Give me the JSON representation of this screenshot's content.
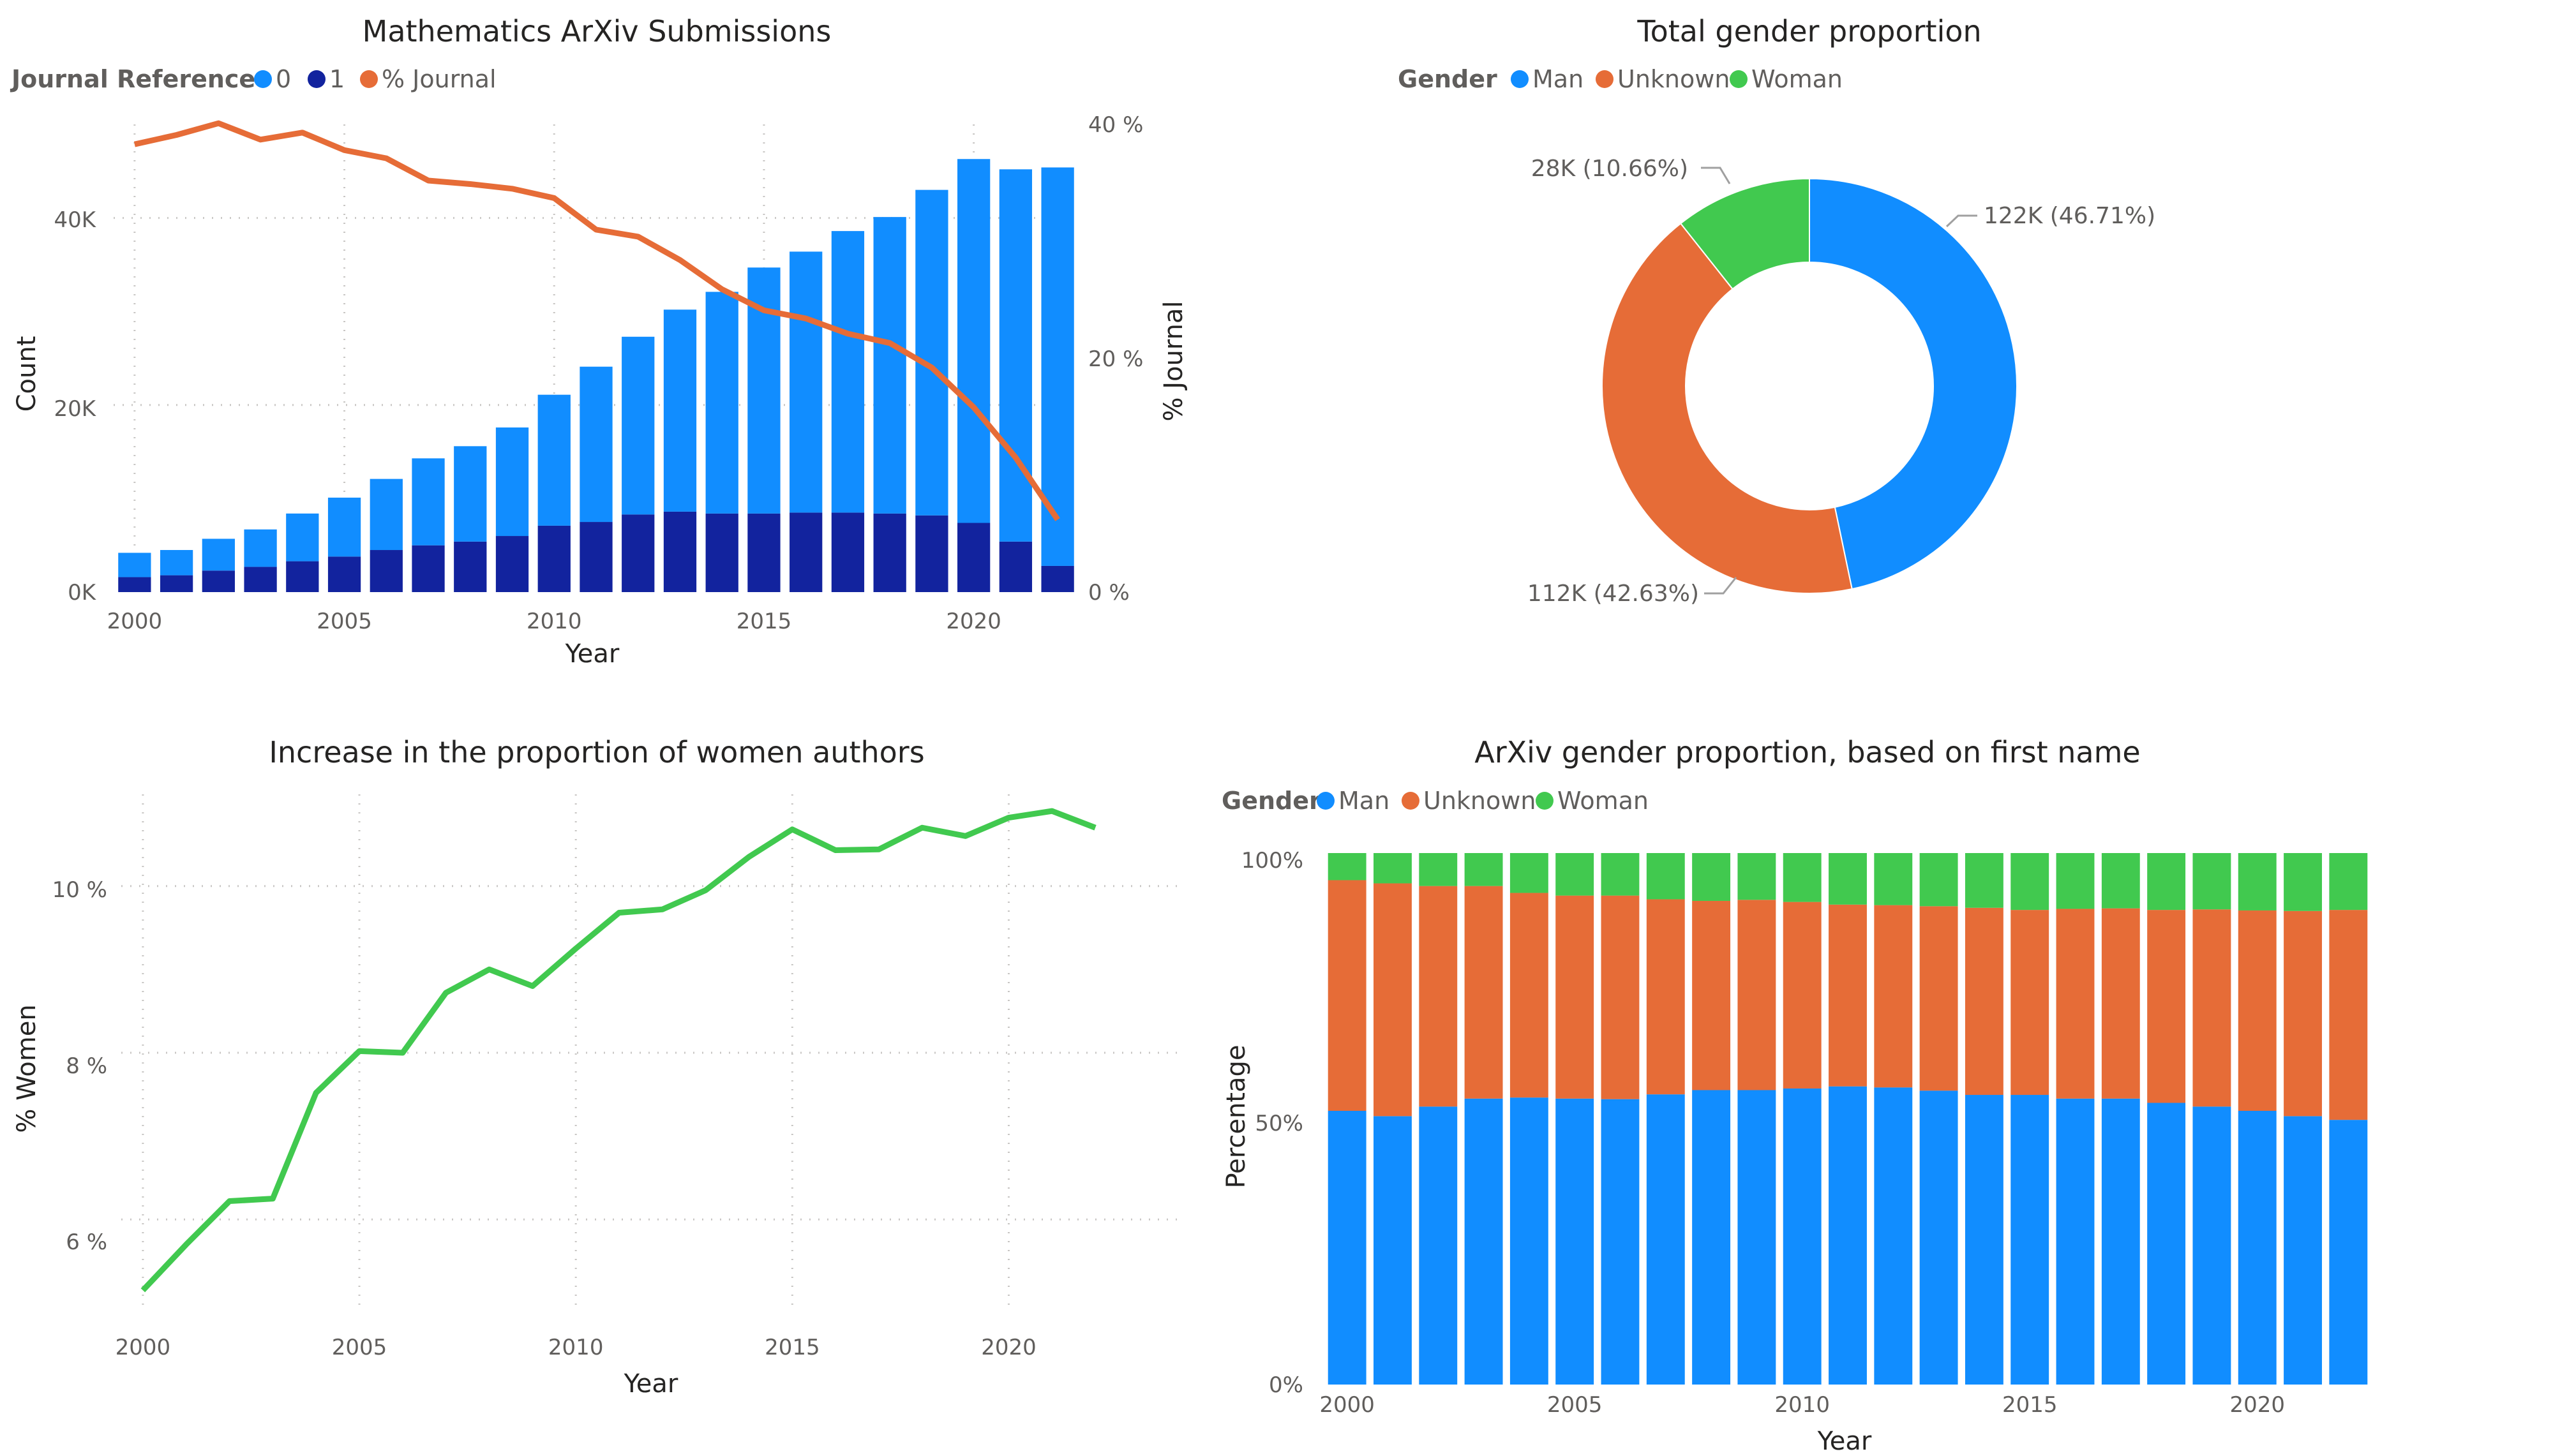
{
  "chart_data": [
    {
      "id": "submissions",
      "type": "bar",
      "title": "Mathematics ArXiv Submissions",
      "legend_title": "Journal Reference",
      "xlabel": "Year",
      "ylabel": "Count",
      "y2label": "% Journal",
      "ylim": [
        0,
        50000
      ],
      "y2lim": [
        0,
        40
      ],
      "y_ticks": [
        "0K",
        "20K",
        "40K"
      ],
      "y2_ticks": [
        "0 %",
        "20 %",
        "40 %"
      ],
      "x_ticks": [
        "2000",
        "2005",
        "2010",
        "2015",
        "2020"
      ],
      "legend_position": "top-left",
      "grid": true,
      "stacked": true,
      "categories": [
        2000,
        2001,
        2002,
        2003,
        2004,
        2005,
        2006,
        2007,
        2008,
        2009,
        2010,
        2011,
        2012,
        2013,
        2014,
        2015,
        2016,
        2017,
        2018,
        2019,
        2020,
        2021,
        2022
      ],
      "series": [
        {
          "name": "1",
          "color": "#12239E",
          "values": [
            1600,
            1800,
            2300,
            2700,
            3300,
            3800,
            4500,
            5000,
            5400,
            6000,
            7100,
            7500,
            8300,
            8600,
            8400,
            8400,
            8500,
            8500,
            8400,
            8200,
            7400,
            5400,
            2800
          ]
        },
        {
          "name": "0",
          "color": "#118DFF",
          "values": [
            2600,
            2700,
            3400,
            4000,
            5100,
            6300,
            7600,
            9300,
            10200,
            11600,
            14000,
            16600,
            19000,
            21600,
            23700,
            26300,
            27900,
            30100,
            31700,
            34800,
            38900,
            39800,
            42600
          ]
        },
        {
          "name": "% Journal",
          "color": "#E66C37",
          "axis": "secondary",
          "values": [
            38.3,
            39.1,
            40.1,
            38.7,
            39.3,
            37.8,
            37.1,
            35.2,
            34.9,
            34.5,
            33.7,
            31.0,
            30.4,
            28.4,
            25.9,
            24.1,
            23.4,
            22.1,
            21.3,
            19.2,
            15.8,
            11.5,
            6.2
          ]
        }
      ]
    },
    {
      "id": "women",
      "type": "line",
      "title": "Increase in the proportion of women authors",
      "xlabel": "Year",
      "ylabel": "% Women",
      "ylim": [
        4.9,
        11.1
      ],
      "y_ticks": [
        "6 %",
        "8 %",
        "10 %"
      ],
      "x_ticks": [
        "2000",
        "2005",
        "2010",
        "2015",
        "2020"
      ],
      "grid": true,
      "x": [
        2000,
        2001,
        2002,
        2003,
        2004,
        2005,
        2006,
        2007,
        2008,
        2009,
        2010,
        2011,
        2012,
        2013,
        2014,
        2015,
        2016,
        2017,
        2018,
        2019,
        2020,
        2021,
        2022
      ],
      "series": [
        {
          "color": "#41C94F",
          "values": [
            5.15,
            5.7,
            6.22,
            6.25,
            7.52,
            8.02,
            8.0,
            8.72,
            9.0,
            8.8,
            9.25,
            9.68,
            9.72,
            9.95,
            10.35,
            10.68,
            10.43,
            10.44,
            10.7,
            10.6,
            10.82,
            10.9,
            10.7
          ]
        }
      ]
    },
    {
      "id": "total_gender",
      "type": "pie",
      "donut": true,
      "title": "Total gender proportion",
      "legend_title": "Gender",
      "legend_position": "top-left",
      "slices": [
        {
          "name": "Man",
          "color": "#118DFF",
          "value": 46.71,
          "label": "122K (46.71%)"
        },
        {
          "name": "Unknown",
          "color": "#E66C37",
          "value": 42.63,
          "label": "112K (42.63%)"
        },
        {
          "name": "Woman",
          "color": "#41C94F",
          "value": 10.66,
          "label": "28K (10.66%)"
        }
      ]
    },
    {
      "id": "gender_yearly",
      "type": "bar",
      "stacked": true,
      "percent": true,
      "title": "ArXiv gender proportion, based on first name",
      "legend_title": "Gender",
      "legend_position": "top-left",
      "xlabel": "Year",
      "ylabel": "Percentage",
      "ylim": [
        0,
        100
      ],
      "y_ticks": [
        "0%",
        "50%",
        "100%"
      ],
      "x_ticks": [
        "2000",
        "2005",
        "2010",
        "2015",
        "2020"
      ],
      "categories": [
        2000,
        2001,
        2002,
        2003,
        2004,
        2005,
        2006,
        2007,
        2008,
        2009,
        2010,
        2011,
        2012,
        2013,
        2014,
        2015,
        2016,
        2017,
        2018,
        2019,
        2020,
        2021,
        2022
      ],
      "series": [
        {
          "name": "Man",
          "color": "#118DFF",
          "values": [
            51.5,
            50.5,
            52.3,
            53.8,
            54.0,
            53.8,
            53.7,
            54.6,
            55.4,
            55.4,
            55.7,
            56.1,
            55.9,
            55.3,
            54.5,
            54.5,
            53.8,
            53.8,
            53.0,
            52.3,
            51.5,
            50.5,
            49.8
          ]
        },
        {
          "name": "Unknown",
          "color": "#E66C37",
          "values": [
            43.4,
            43.8,
            41.5,
            40.0,
            38.5,
            38.2,
            38.3,
            36.7,
            35.6,
            35.8,
            35.1,
            34.2,
            34.3,
            34.7,
            35.2,
            34.8,
            35.7,
            35.8,
            36.3,
            37.1,
            37.7,
            38.6,
            39.5
          ]
        },
        {
          "name": "Woman",
          "color": "#41C94F",
          "values": [
            5.1,
            5.7,
            6.2,
            6.2,
            7.5,
            8.0,
            8.0,
            8.7,
            9.0,
            8.8,
            9.2,
            9.7,
            9.8,
            10.0,
            10.3,
            10.7,
            10.5,
            10.4,
            10.7,
            10.6,
            10.8,
            10.9,
            10.7
          ]
        }
      ]
    }
  ]
}
